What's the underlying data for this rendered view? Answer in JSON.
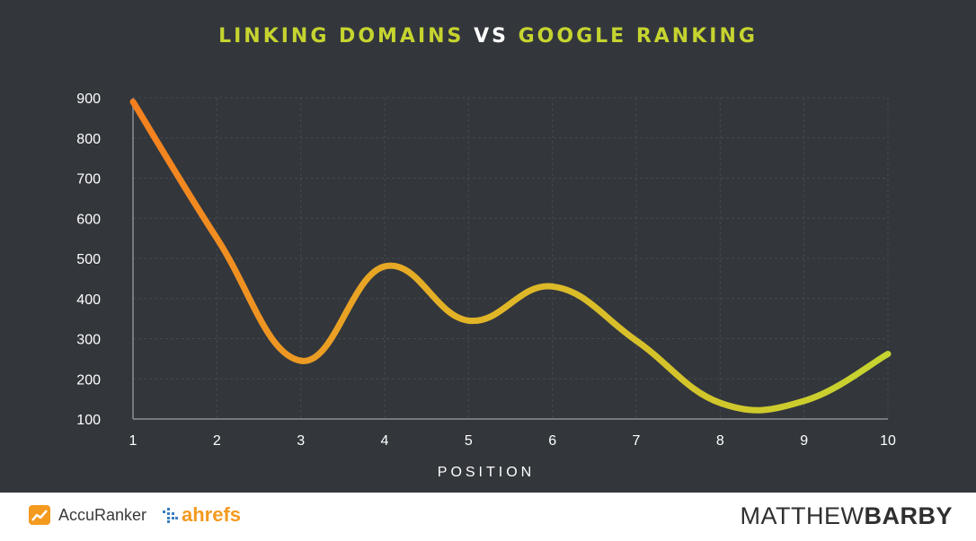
{
  "title": {
    "part1": "LINKING DOMAINS",
    "part2": "VS",
    "part3": "GOOGLE RANKING"
  },
  "chart_data": {
    "type": "line",
    "title": "LINKING DOMAINS VS GOOGLE RANKING",
    "xlabel": "POSITION",
    "ylabel": "",
    "x": [
      1,
      2,
      3,
      4,
      5,
      6,
      7,
      8,
      9,
      10
    ],
    "series": [
      {
        "values": [
          890,
          550,
          245,
          480,
          345,
          430,
          295,
          140,
          145,
          262
        ]
      }
    ],
    "xlim": [
      1,
      10
    ],
    "ylim": [
      100,
      900
    ],
    "yticks": [
      100,
      200,
      300,
      400,
      500,
      600,
      700,
      800,
      900
    ],
    "grid": true,
    "line_gradient": [
      "#f5801f",
      "#c6d42f"
    ],
    "background": "#33373c"
  },
  "footer": {
    "accuranker": "AccuRanker",
    "ahrefs": "ahrefs",
    "brand_light": "MATTHEW",
    "brand_bold": "BARBY"
  },
  "colors": {
    "accent": "#c6d42f",
    "orange": "#f5801f"
  }
}
